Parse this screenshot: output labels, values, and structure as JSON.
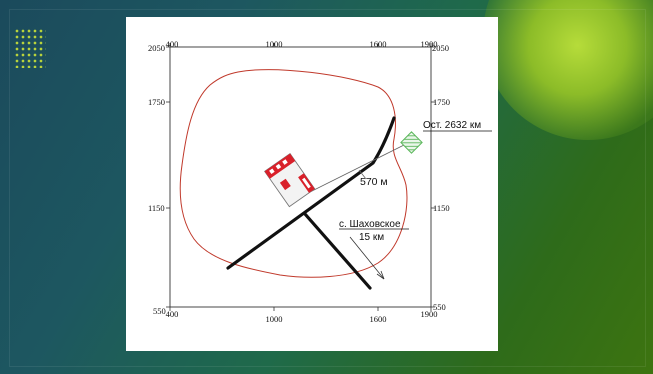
{
  "slide": {
    "colors": {
      "background_start": "#1b4a5c",
      "background_end": "#3d7410",
      "accent_glow": "#b6dc3a",
      "panel": "#ffffff"
    }
  },
  "map": {
    "x_ticks": [
      "400",
      "1000",
      "1600",
      "1900"
    ],
    "y_ticks": [
      "2050",
      "1750",
      "1150",
      "550"
    ],
    "labels": {
      "station": "Ост. 2632 км",
      "distance": "570 м",
      "village": "с. Шаховское",
      "village_distance": "15 км"
    },
    "colors": {
      "contour": "#c0392b",
      "roads": "#111111",
      "facility": "#d9202a",
      "station_hatch": "#5cb85c"
    }
  }
}
